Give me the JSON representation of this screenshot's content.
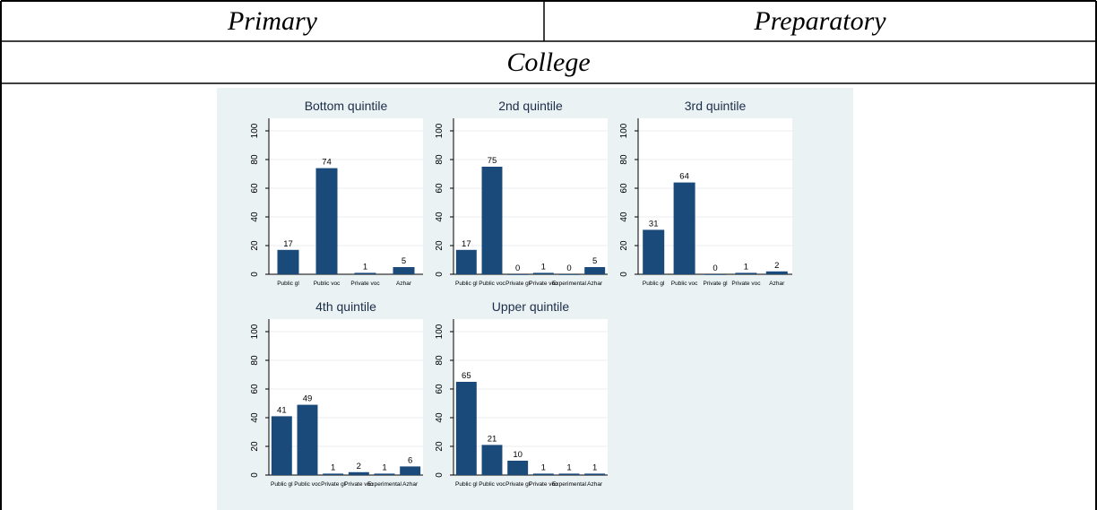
{
  "table": {
    "header_left": "Primary",
    "header_right": "Preparatory",
    "subheader": "College"
  },
  "colors": {
    "bar": "#1a4a7a",
    "panel_bg": "#eaf2f3",
    "plot_bg": "#ffffff",
    "grid": "#e8eef0",
    "axis": "#000000"
  },
  "chart_data": [
    {
      "type": "bar",
      "title": "Bottom quintile",
      "categories": [
        "Public gl",
        "Public voc",
        "Private voc",
        "Azhar"
      ],
      "values": [
        17,
        74,
        1,
        5
      ],
      "ylim": [
        0,
        100
      ],
      "yticks": [
        0,
        20,
        40,
        60,
        80,
        100
      ],
      "grid": true
    },
    {
      "type": "bar",
      "title": "2nd quintile",
      "categories": [
        "Public gl",
        "Public voc",
        "Private gl",
        "Private voc",
        "Experimental",
        "Azhar"
      ],
      "values": [
        17,
        75,
        0,
        1,
        0,
        5
      ],
      "ylim": [
        0,
        100
      ],
      "yticks": [
        0,
        20,
        40,
        60,
        80,
        100
      ],
      "grid": true
    },
    {
      "type": "bar",
      "title": "3rd quintile",
      "categories": [
        "Public gl",
        "Public voc",
        "Private gl",
        "Private voc",
        "Azhar"
      ],
      "values": [
        31,
        64,
        0,
        1,
        2
      ],
      "ylim": [
        0,
        100
      ],
      "yticks": [
        0,
        20,
        40,
        60,
        80,
        100
      ],
      "grid": true
    },
    {
      "type": "bar",
      "title": "4th quintile",
      "categories": [
        "Public gl",
        "Public voc",
        "Private gl",
        "Private voc",
        "Experimental",
        "Azhar"
      ],
      "values": [
        41,
        49,
        1,
        2,
        1,
        6
      ],
      "ylim": [
        0,
        100
      ],
      "yticks": [
        0,
        20,
        40,
        60,
        80,
        100
      ],
      "grid": true
    },
    {
      "type": "bar",
      "title": "Upper quintile",
      "categories": [
        "Public gl",
        "Public voc",
        "Private gl",
        "Private voc",
        "Experimental",
        "Azhar"
      ],
      "values": [
        65,
        21,
        10,
        1,
        1,
        1
      ],
      "ylim": [
        0,
        100
      ],
      "yticks": [
        0,
        20,
        40,
        60,
        80,
        100
      ],
      "grid": true
    }
  ]
}
